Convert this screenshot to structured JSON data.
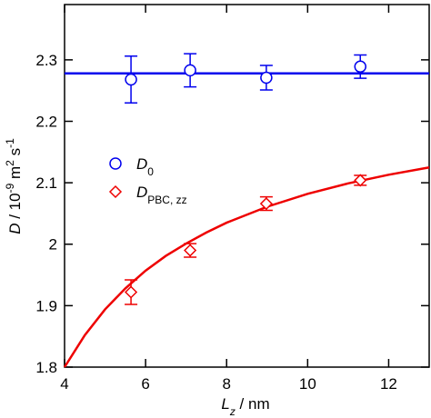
{
  "chart_data": {
    "type": "scatter",
    "xlabel": [
      "L",
      "z",
      " / nm"
    ],
    "ylabel": [
      "D",
      " / 10",
      "-9",
      " m",
      "2",
      " s",
      "-1"
    ],
    "xlim": [
      4,
      13
    ],
    "xticks": [
      4,
      6,
      8,
      10,
      12
    ],
    "ylim": [
      1.8,
      2.39
    ],
    "yticks": [
      1.8,
      1.9,
      2,
      2.1,
      2.2,
      2.3
    ],
    "legend": "upper-left",
    "series": [
      {
        "name": [
          "D",
          "0"
        ],
        "color": "#0000ee",
        "marker": "circle",
        "x": [
          5.64,
          7.1,
          8.98,
          11.3
        ],
        "values": [
          2.268,
          2.283,
          2.271,
          2.289
        ],
        "errors": [
          0.038,
          0.027,
          0.02,
          0.019
        ]
      },
      {
        "name": [
          "D",
          "PBC, zz"
        ],
        "color": "#ee0000",
        "marker": "diamond",
        "x": [
          5.64,
          7.1,
          8.98,
          11.3
        ],
        "values": [
          1.922,
          1.99,
          2.066,
          2.104
        ],
        "errors": [
          0.02,
          0.011,
          0.011,
          0.008
        ]
      }
    ],
    "lines": [
      {
        "color": "#0000ee",
        "x": [
          4,
          13
        ],
        "values": [
          2.278,
          2.278
        ]
      },
      {
        "color": "#ee0000",
        "x": [
          4,
          4.5,
          5,
          5.5,
          6,
          6.5,
          7,
          7.5,
          8,
          9,
          10,
          11,
          12,
          13
        ],
        "values": [
          1.8,
          1.852,
          1.894,
          1.928,
          1.957,
          1.981,
          2.001,
          2.019,
          2.035,
          2.061,
          2.082,
          2.099,
          2.113,
          2.125
        ]
      }
    ]
  }
}
